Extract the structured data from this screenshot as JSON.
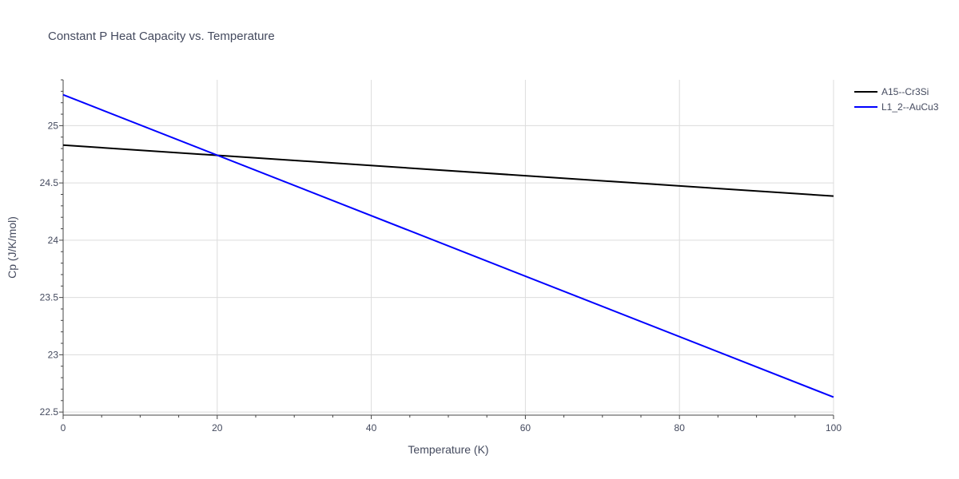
{
  "chart_data": {
    "type": "line",
    "title": "Constant P Heat Capacity vs. Temperature",
    "xlabel": "Temperature (K)",
    "ylabel": "Cp (J/K/mol)",
    "xlim": [
      0,
      100
    ],
    "ylim": [
      22.48,
      25.4
    ],
    "xticks": [
      0,
      20,
      40,
      60,
      80,
      100
    ],
    "xtick_labels": [
      "0",
      "20",
      "40",
      "60",
      "80",
      "100"
    ],
    "yticks": [
      22.5,
      23,
      23.5,
      24,
      24.5,
      25
    ],
    "ytick_labels": [
      "22.5",
      "23",
      "23.5",
      "24",
      "24.5",
      "25"
    ],
    "grid": true,
    "legend_position": "top-right",
    "series": [
      {
        "name": "A15--Cr3Si",
        "color": "#000000",
        "x": [
          0,
          100
        ],
        "y": [
          24.83,
          24.385
        ]
      },
      {
        "name": "L1_2--AuCu3",
        "color": "#0000ff",
        "x": [
          0,
          100
        ],
        "y": [
          25.27,
          22.63
        ]
      }
    ]
  }
}
